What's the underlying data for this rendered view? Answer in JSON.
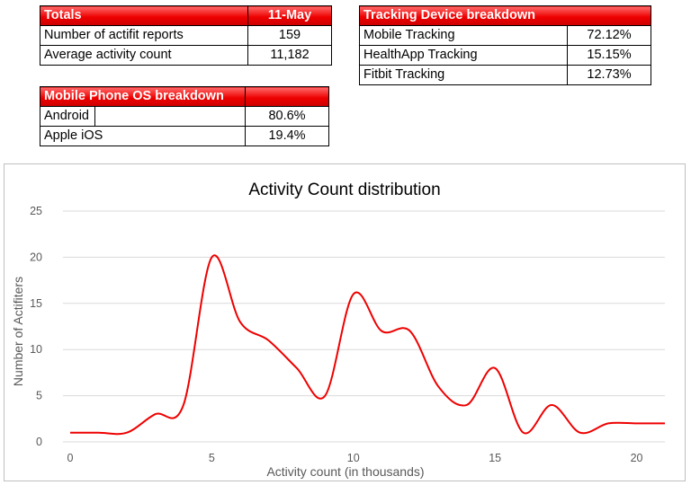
{
  "totals": {
    "header_label": "Totals",
    "header_date": "11-May",
    "rows": [
      {
        "label": "Number of actifit reports",
        "value": "159"
      },
      {
        "label": "Average activity count",
        "value": "11,182"
      }
    ]
  },
  "device_breakdown": {
    "header": "Tracking Device breakdown",
    "rows": [
      {
        "label": "Mobile Tracking",
        "value": "72.12%"
      },
      {
        "label": "HealthApp Tracking",
        "value": "15.15%"
      },
      {
        "label": "Fitbit Tracking",
        "value": "12.73%"
      }
    ]
  },
  "os_breakdown": {
    "header": "Mobile Phone OS breakdown",
    "rows": [
      {
        "label": "Android",
        "value": "80.6%"
      },
      {
        "label": "Apple iOS",
        "value": "19.4%"
      }
    ]
  },
  "colors": {
    "header_red": "#e00000",
    "line_red": "#ee0000",
    "grid": "#d9d9d9"
  },
  "chart_data": {
    "type": "line",
    "title": "Activity Count distribution",
    "xlabel": "Activity count (in thousands)",
    "ylabel": "Number of Actifiters",
    "xlim": [
      0,
      21
    ],
    "ylim": [
      0,
      25
    ],
    "xticks": [
      0,
      5,
      10,
      15,
      20
    ],
    "yticks": [
      0,
      5,
      10,
      15,
      20,
      25
    ],
    "grid": true,
    "smooth": true,
    "x": [
      0,
      1,
      2,
      3,
      4,
      5,
      6,
      7,
      8,
      9,
      10,
      11,
      12,
      13,
      14,
      15,
      16,
      17,
      18,
      19,
      20,
      21
    ],
    "series": [
      {
        "values": [
          1,
          1,
          1,
          3,
          4,
          20,
          13,
          11,
          8,
          5,
          16,
          12,
          12,
          6,
          4,
          8,
          1,
          4,
          1,
          2,
          2,
          2
        ]
      }
    ]
  }
}
